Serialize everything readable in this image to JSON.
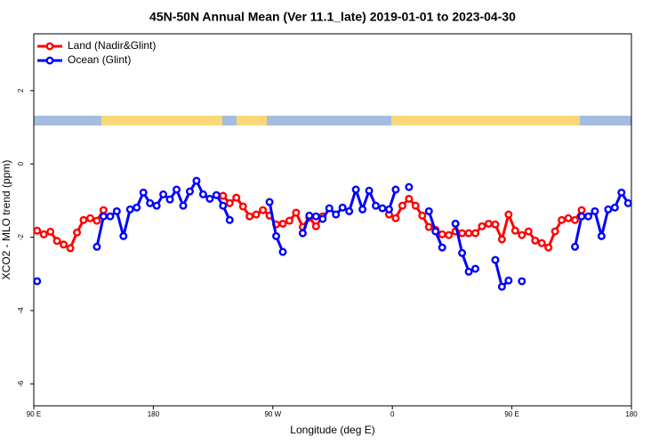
{
  "chart_data": {
    "type": "line",
    "title": "45N-50N Annual Mean (Ver 11.1_late)   2019-01-01 to 2023-04-30",
    "x_label": "Longitude (deg E)",
    "y_label": "XCO2 - MLO trend (ppm)",
    "legend": "top-left",
    "x": [
      92.5,
      97.5,
      102.5,
      107.5,
      112.5,
      117.5,
      122.5,
      127.5,
      132.5,
      137.5,
      142.5,
      147.5,
      152.5,
      157.5,
      162.5,
      167.5,
      172.5,
      177.5,
      182.5,
      187.5,
      192.5,
      197.5,
      202.5,
      207.5,
      212.5,
      217.5,
      222.5,
      227.5,
      232.5,
      237.5,
      242.5,
      247.5,
      252.5,
      257.5,
      262.5,
      267.5,
      272.5,
      277.5,
      282.5,
      287.5,
      292.5,
      297.5,
      302.5,
      307.5,
      312.5,
      317.5,
      322.5,
      327.5,
      332.5,
      337.5,
      342.5,
      347.5,
      352.5,
      357.5,
      362.5,
      367.5,
      372.5,
      377.5,
      382.5,
      387.5,
      392.5,
      397.5,
      402.5,
      407.5,
      412.5,
      417.5,
      422.5,
      427.5,
      432.5,
      437.5,
      442.5,
      447.5,
      452.5,
      457.5,
      462.5,
      467.5,
      472.5,
      477.5,
      482.5,
      487.5,
      492.5,
      497.5,
      502.5,
      507.5,
      512.5,
      517.5,
      522.5,
      527.5,
      532.5,
      537.5
    ],
    "series": [
      {
        "name": "Land (Nadir&Glint)",
        "color": "#ff0000",
        "values": [
          -1.82,
          -1.92,
          -1.85,
          -2.1,
          -2.2,
          -2.3,
          -1.87,
          -1.53,
          -1.48,
          -1.55,
          -1.26,
          null,
          null,
          null,
          null,
          null,
          null,
          null,
          null,
          null,
          null,
          null,
          null,
          null,
          null,
          null,
          null,
          null,
          -0.87,
          -1.07,
          -0.92,
          -1.16,
          -1.43,
          -1.38,
          -1.26,
          -1.41,
          -1.65,
          -1.63,
          -1.55,
          -1.33,
          -1.72,
          -1.46,
          -1.7,
          -1.43,
          null,
          null,
          null,
          null,
          null,
          null,
          null,
          null,
          null,
          -1.38,
          -1.48,
          -1.14,
          -0.95,
          -1.14,
          -1.41,
          -1.72,
          -1.8,
          -1.92,
          -1.94,
          -1.84,
          -1.89,
          -1.89,
          -1.89,
          -1.7,
          -1.63,
          -1.65,
          -2.06,
          -1.38,
          -1.82,
          -1.94,
          -1.84,
          -2.09,
          -2.16,
          -2.28,
          -1.84,
          -1.53,
          -1.48,
          -1.53,
          -1.26,
          null,
          null,
          null,
          null,
          null,
          null,
          null
        ]
      },
      {
        "name": "Ocean (Glint)",
        "color": "#0000ff",
        "values": [
          -3.2,
          null,
          null,
          null,
          null,
          null,
          null,
          null,
          null,
          -2.26,
          -1.43,
          -1.43,
          -1.29,
          -1.97,
          -1.24,
          -1.19,
          -0.78,
          -1.07,
          -1.14,
          -0.83,
          -0.97,
          -0.7,
          -1.14,
          -0.75,
          -0.46,
          -0.83,
          -0.95,
          -0.85,
          -1.14,
          -1.53,
          null,
          null,
          null,
          null,
          null,
          -1.04,
          -1.97,
          -2.4,
          null,
          null,
          -1.89,
          -1.41,
          -1.43,
          -1.5,
          -1.21,
          -1.38,
          -1.19,
          -1.29,
          -0.7,
          -1.24,
          -0.73,
          -1.14,
          -1.21,
          -1.24,
          -0.7,
          null,
          -0.63,
          null,
          null,
          -1.29,
          -1.84,
          -2.28,
          null,
          -1.63,
          -2.43,
          -2.94,
          -2.86,
          null,
          null,
          -2.62,
          -3.35,
          -3.18,
          null,
          -3.2,
          null,
          null,
          null,
          null,
          null,
          null,
          null,
          -2.26,
          -1.43,
          -1.43,
          -1.29,
          -1.97,
          -1.24,
          -1.19,
          -0.78,
          -1.07
        ]
      }
    ],
    "xlim": [
      90,
      540
    ],
    "xticks": [
      {
        "value": 90,
        "label": "90 E"
      },
      180,
      {
        "value": 270,
        "label": "90 W"
      },
      {
        "value": 360,
        "label": "0"
      },
      {
        "value": 450,
        "label": "90 E"
      },
      {
        "value": 540,
        "label": "180"
      }
    ],
    "ylim": [
      -6.6,
      3.55
    ],
    "yticks": [
      2,
      0,
      -2,
      -4,
      -6
    ]
  }
}
